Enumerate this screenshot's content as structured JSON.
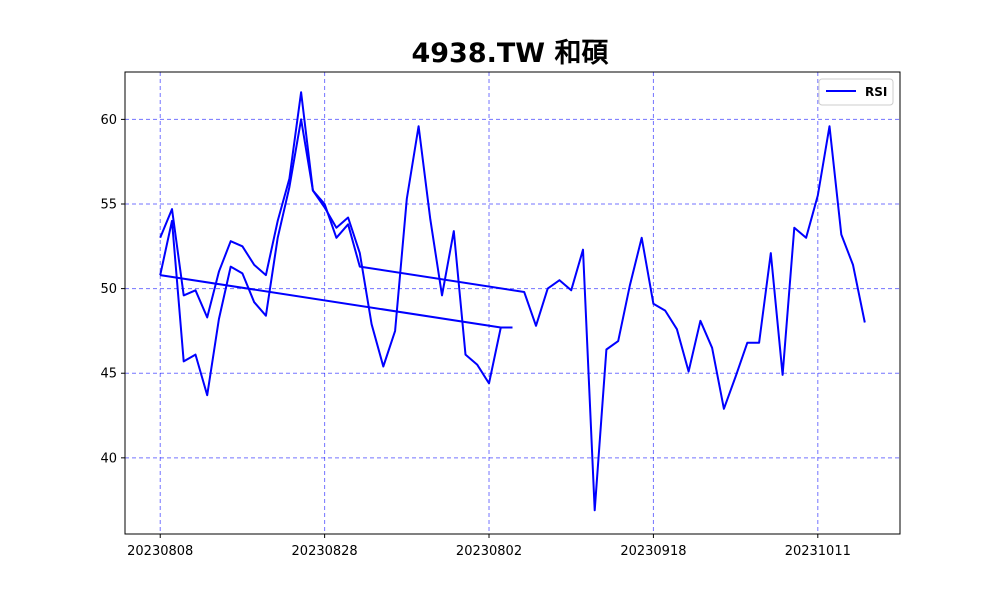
{
  "chart_data": {
    "type": "line",
    "title": "4938.TW 和碩",
    "xlabel": "",
    "ylabel": "",
    "ylim": [
      35.5,
      62.8
    ],
    "y_ticks": [
      40,
      45,
      50,
      55,
      60
    ],
    "x_tick_labels": [
      "20230808",
      "20230828",
      "20230802",
      "20230918",
      "20231011"
    ],
    "x_tick_positions": [
      0,
      14,
      28,
      42,
      56
    ],
    "xlim": [
      -3,
      63
    ],
    "grid": true,
    "grid_color": "#0000ff",
    "line_color": "#0000ff",
    "legend_position": "top-right",
    "series": [
      {
        "name": "RSI",
        "points": [
          [
            0,
            53.0
          ],
          [
            1,
            54.7
          ],
          [
            2,
            49.6
          ],
          [
            3,
            49.9
          ],
          [
            4,
            48.3
          ],
          [
            5,
            51.0
          ],
          [
            6,
            52.8
          ],
          [
            7,
            52.5
          ],
          [
            8,
            51.4
          ],
          [
            9,
            50.8
          ],
          [
            10,
            54.0
          ],
          [
            11,
            56.5
          ],
          [
            12,
            61.6
          ],
          [
            13,
            55.8
          ],
          [
            14,
            55.0
          ],
          [
            15,
            53.0
          ],
          [
            16,
            53.8
          ],
          [
            17,
            51.3
          ],
          [
            31,
            49.8
          ],
          [
            32,
            47.8
          ],
          [
            33,
            50.0
          ],
          [
            34,
            50.5
          ],
          [
            35,
            49.9
          ],
          [
            36,
            52.3
          ],
          [
            37,
            36.9
          ],
          [
            38,
            46.4
          ],
          [
            39,
            46.9
          ],
          [
            40,
            50.2
          ],
          [
            41,
            53.0
          ],
          [
            42,
            49.1
          ],
          [
            43,
            48.7
          ],
          [
            44,
            47.6
          ],
          [
            45,
            45.1
          ],
          [
            46,
            48.1
          ],
          [
            47,
            46.5
          ],
          [
            48,
            42.9
          ],
          [
            49,
            44.8
          ],
          [
            50,
            46.8
          ],
          [
            51,
            46.8
          ],
          [
            52,
            52.1
          ],
          [
            53,
            44.9
          ],
          [
            54,
            53.6
          ],
          [
            55,
            53.0
          ],
          [
            56,
            55.5
          ],
          [
            57,
            59.6
          ],
          [
            58,
            53.2
          ],
          [
            59,
            51.4
          ],
          [
            60,
            48.0
          ]
        ]
      },
      {
        "name": "RSI",
        "points": [
          [
            0,
            50.8
          ],
          [
            1,
            54.0
          ],
          [
            2,
            45.7
          ],
          [
            3,
            46.1
          ],
          [
            4,
            43.7
          ],
          [
            5,
            48.2
          ],
          [
            6,
            51.3
          ],
          [
            7,
            50.9
          ],
          [
            8,
            49.2
          ],
          [
            9,
            48.4
          ],
          [
            10,
            53.0
          ],
          [
            11,
            56.0
          ],
          [
            12,
            60.0
          ],
          [
            13,
            55.8
          ],
          [
            14,
            54.8
          ],
          [
            15,
            53.6
          ],
          [
            16,
            54.2
          ],
          [
            17,
            52.1
          ],
          [
            18,
            47.9
          ],
          [
            19,
            45.4
          ],
          [
            20,
            47.5
          ],
          [
            21,
            55.3
          ],
          [
            22,
            59.6
          ],
          [
            23,
            54.1
          ],
          [
            24,
            49.6
          ],
          [
            25,
            53.4
          ],
          [
            26,
            46.1
          ],
          [
            27,
            45.5
          ],
          [
            28,
            44.4
          ],
          [
            29,
            47.7
          ],
          [
            30,
            47.7
          ]
        ]
      },
      {
        "name": "RSI",
        "points": [
          [
            0,
            50.8
          ],
          [
            29,
            47.7
          ]
        ]
      }
    ],
    "legend": [
      "RSI"
    ]
  }
}
